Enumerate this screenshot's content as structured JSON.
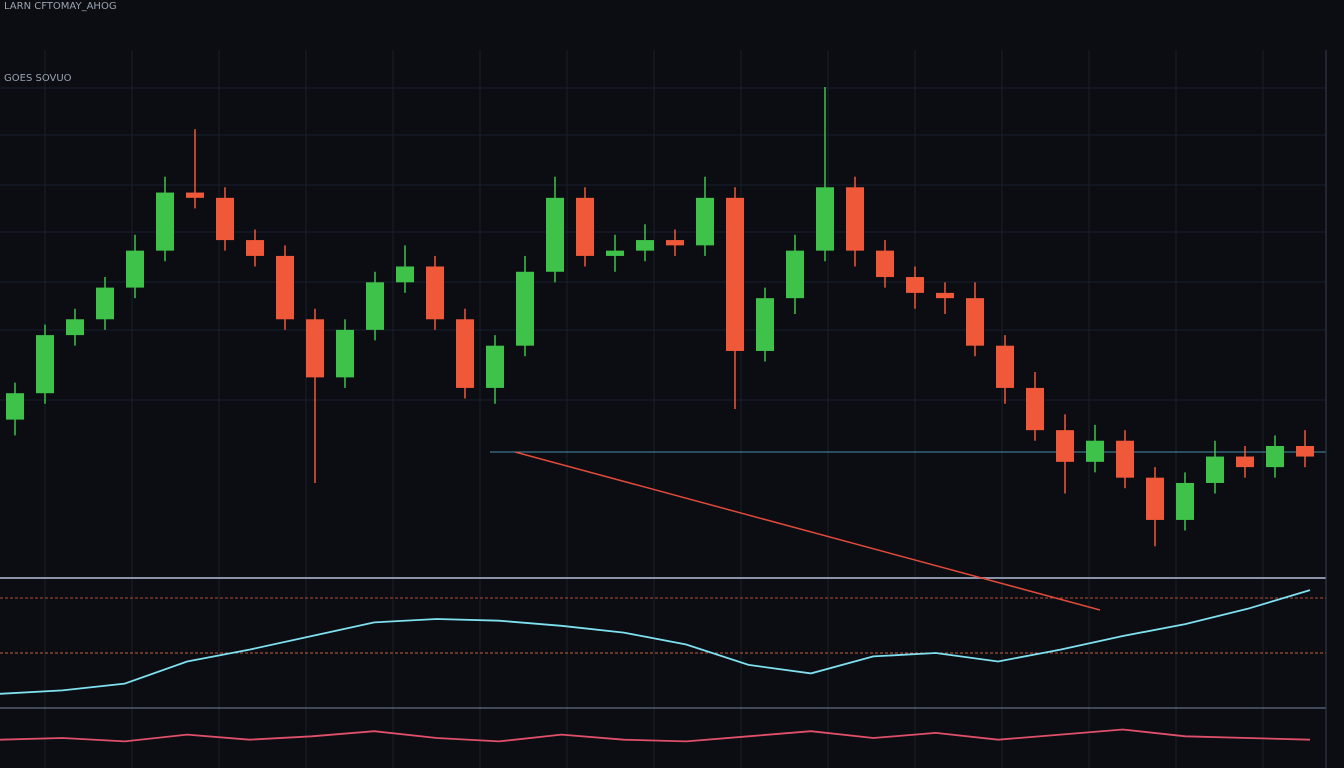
{
  "chart_data": [
    {
      "type": "candlestick",
      "title": "LARN CFTOMAY_AHOG",
      "subtitle": "GOES SOVUO",
      "ylim": [
        0,
        100
      ],
      "up_color": "#3fc24a",
      "down_color": "#f0583a",
      "open": [
        30,
        35,
        46,
        49,
        55,
        62,
        73,
        72,
        64,
        61,
        49,
        38,
        47,
        56,
        59,
        49,
        36,
        44,
        58,
        72,
        61,
        62,
        64,
        63,
        72,
        43,
        53,
        62,
        74,
        62,
        57,
        54,
        53,
        44,
        36,
        28,
        22,
        26,
        19,
        11,
        18,
        23,
        21,
        25
      ],
      "high": [
        37,
        48,
        51,
        57,
        65,
        76,
        85,
        74,
        66,
        63,
        51,
        49,
        58,
        63,
        61,
        51,
        46,
        61,
        76,
        74,
        65,
        67,
        66,
        76,
        74,
        55,
        65,
        93,
        76,
        64,
        59,
        56,
        56,
        46,
        39,
        31,
        29,
        28,
        21,
        20,
        26,
        25,
        27,
        28
      ],
      "low": [
        27,
        33,
        44,
        47,
        53,
        60,
        70,
        62,
        59,
        47,
        18,
        36,
        45,
        54,
        47,
        34,
        33,
        42,
        56,
        59,
        58,
        60,
        61,
        61,
        32,
        41,
        50,
        60,
        59,
        55,
        51,
        50,
        42,
        33,
        26,
        16,
        20,
        17,
        6,
        9,
        16,
        19,
        19,
        21
      ],
      "close": [
        35,
        46,
        49,
        55,
        62,
        73,
        72,
        64,
        61,
        49,
        38,
        47,
        56,
        59,
        49,
        36,
        44,
        58,
        72,
        61,
        62,
        64,
        63,
        72,
        43,
        53,
        62,
        74,
        62,
        57,
        54,
        53,
        44,
        36,
        28,
        22,
        26,
        19,
        11,
        18,
        23,
        21,
        25,
        23
      ]
    },
    {
      "type": "line",
      "ylim": [
        0,
        100
      ],
      "series": [
        {
          "color": "#7fe0f0",
          "values": [
            36,
            38,
            42,
            55,
            62,
            70,
            78,
            80,
            79,
            76,
            72,
            65,
            53,
            48,
            58,
            60,
            55,
            62,
            70,
            77,
            86,
            97
          ]
        },
        {
          "color": "#e0506a",
          "values": [
            9,
            10,
            8,
            12,
            9,
            11,
            14,
            10,
            8,
            12,
            9,
            8,
            11,
            14,
            10,
            13,
            9,
            12,
            15,
            11,
            10,
            9
          ]
        }
      ]
    }
  ]
}
